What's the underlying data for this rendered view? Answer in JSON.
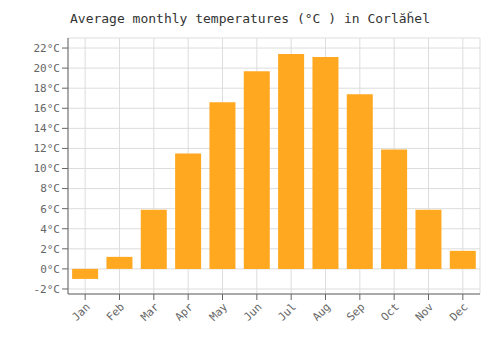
{
  "chart_data": {
    "type": "bar",
    "title": "Average monthly temperatures (°C ) in Corlăȟel",
    "categories": [
      "Jan",
      "Feb",
      "Mar",
      "Apr",
      "May",
      "Jun",
      "Jul",
      "Aug",
      "Sep",
      "Oct",
      "Nov",
      "Dec"
    ],
    "values": [
      -1.0,
      1.2,
      5.9,
      11.5,
      16.6,
      19.7,
      21.4,
      21.1,
      17.4,
      11.9,
      5.9,
      1.8
    ],
    "color": "#FFA820",
    "ylim": [
      -2.5,
      23
    ],
    "yticks": [
      {
        "value": -2,
        "label": "-2°C"
      },
      {
        "value": 0,
        "label": "0°C"
      },
      {
        "value": 2,
        "label": "2°C"
      },
      {
        "value": 4,
        "label": "4°C"
      },
      {
        "value": 6,
        "label": "6°C"
      },
      {
        "value": 8,
        "label": "8°C"
      },
      {
        "value": 10,
        "label": "10°C"
      },
      {
        "value": 12,
        "label": "12°C"
      },
      {
        "value": 14,
        "label": "14°C"
      },
      {
        "value": 16,
        "label": "16°C"
      },
      {
        "value": 18,
        "label": "18°C"
      },
      {
        "value": 20,
        "label": "20°C"
      },
      {
        "value": 22,
        "label": "22°C"
      }
    ],
    "grid": true
  }
}
